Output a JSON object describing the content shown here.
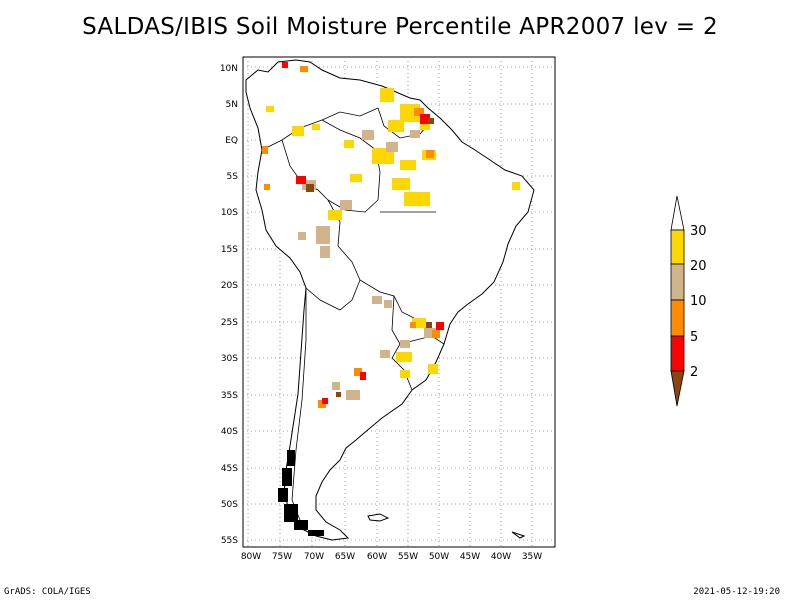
{
  "title": "SALDAS/IBIS Soil Moisture Percentile APR2007 lev = 2",
  "map": {
    "lat_labels": [
      "10N",
      "5N",
      "EQ",
      "5S",
      "10S",
      "15S",
      "20S",
      "25S",
      "30S",
      "35S",
      "40S",
      "45S",
      "50S",
      "55S"
    ],
    "lon_labels": [
      "80W",
      "75W",
      "70W",
      "65W",
      "60W",
      "55W",
      "50W",
      "45W",
      "40W",
      "35W"
    ],
    "lat_range": [
      11,
      -56
    ],
    "lon_range": [
      -81,
      -33
    ],
    "grid": "dotted"
  },
  "colorbar": {
    "labels": [
      "30",
      "20",
      "10",
      "5",
      "2"
    ],
    "colors": {
      "above_30": "#ffffff",
      "20_30": "#ffd700",
      "10_20": "#d2b48c",
      "5_10": "#ff8c00",
      "2_5": "#ff0000",
      "below_2": "#8b4513"
    }
  },
  "footer": {
    "left": "GrADS: COLA/IGES",
    "right": "2021-05-12-19:20"
  }
}
